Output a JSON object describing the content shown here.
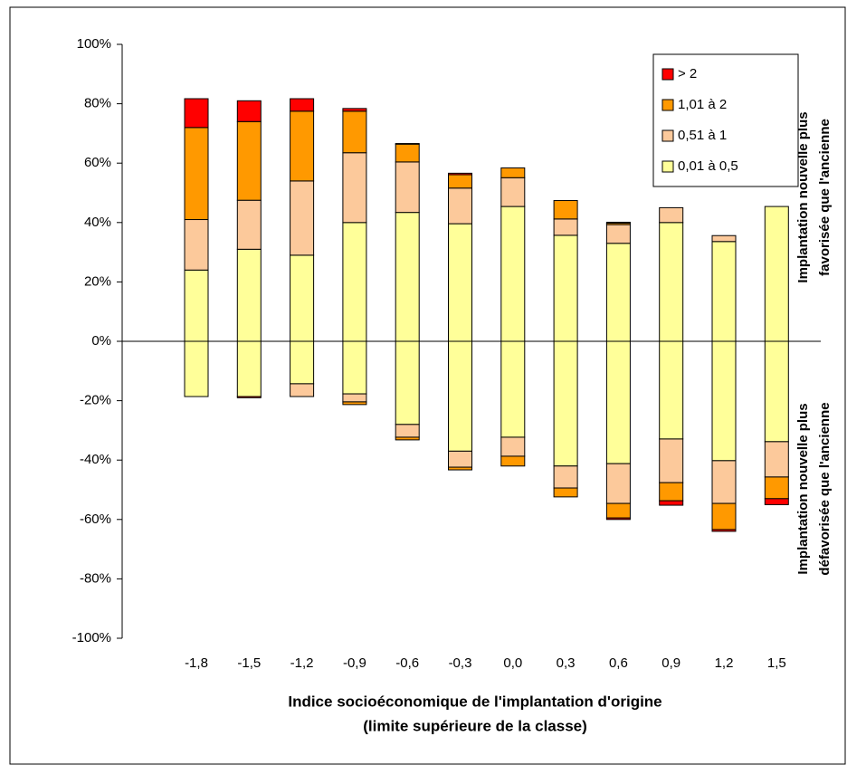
{
  "chart_data": {
    "type": "stacked-bar",
    "x_label": [
      "Indice socioéconomique de l'implantation d'origine",
      "(limite supérieure de la classe)"
    ],
    "annotations": [
      [
        "Implantation nouvelle plus",
        "favorisée que l'ancienne"
      ],
      [
        "Implantation nouvelle plus",
        "défavorisée que l'ancienne"
      ]
    ],
    "categories": [
      "-1,8",
      "-1,5",
      "-1,2",
      "-0,9",
      "-0,6",
      "-0,3",
      "0,0",
      "0,3",
      "0,6",
      "0,9",
      "1,2",
      "1,5"
    ],
    "series": [
      {
        "name": "0,01 à 0,5",
        "color": "#ffff99",
        "values": [
          24,
          31,
          29,
          40,
          43.4,
          39.6,
          45.4,
          35.7,
          33,
          40,
          33.6,
          45.4
        ],
        "negative_values": [
          -18.6,
          -18.6,
          -14.3,
          -17.7,
          -28,
          -37,
          -32.3,
          -42,
          -41.2,
          -32.9,
          -40.2,
          -33.8
        ]
      },
      {
        "name": "0,51 à 1",
        "color": "#fcc99b",
        "values": [
          17,
          16.5,
          25,
          23.5,
          17,
          12,
          9.7,
          5.5,
          6.3,
          5,
          2,
          0
        ],
        "negative_values": [
          0,
          0,
          -4.3,
          -2.7,
          -4.3,
          -5.4,
          -6.4,
          -7.4,
          -13.4,
          -14.7,
          -14.4,
          -11.9
        ]
      },
      {
        "name": "1,01 à 2",
        "color": "#ff9900",
        "values": [
          31,
          26.5,
          23.5,
          14,
          6,
          4.5,
          3.3,
          6.2,
          0.5,
          0,
          0,
          0
        ],
        "negative_values": [
          0,
          0,
          0,
          -0.9,
          -0.9,
          -0.9,
          -3.3,
          -3,
          -4.9,
          -6.1,
          -8.8,
          -7.3
        ]
      },
      {
        "name": "> 2",
        "color": "#ff0000",
        "values": [
          9.7,
          7,
          4.2,
          0.9,
          0.2,
          0.5,
          0,
          0,
          0.3,
          0,
          0,
          0
        ],
        "negative_values": [
          0,
          -0.4,
          0,
          0,
          0,
          0,
          0,
          0,
          -0.5,
          -1.5,
          -0.6,
          -2
        ]
      }
    ],
    "ylim": [
      -100,
      100
    ],
    "yticks": [
      {
        "value": -100,
        "label": "-100%"
      },
      {
        "value": -80,
        "label": "-80%"
      },
      {
        "value": -60,
        "label": "-60%"
      },
      {
        "value": -40,
        "label": "-40%"
      },
      {
        "value": -20,
        "label": "-20%"
      },
      {
        "value": 0,
        "label": "0%"
      },
      {
        "value": 20,
        "label": "20%"
      },
      {
        "value": 40,
        "label": "40%"
      },
      {
        "value": 60,
        "label": "60%"
      },
      {
        "value": 80,
        "label": "80%"
      },
      {
        "value": 100,
        "label": "100%"
      }
    ],
    "legend": "top-right"
  }
}
